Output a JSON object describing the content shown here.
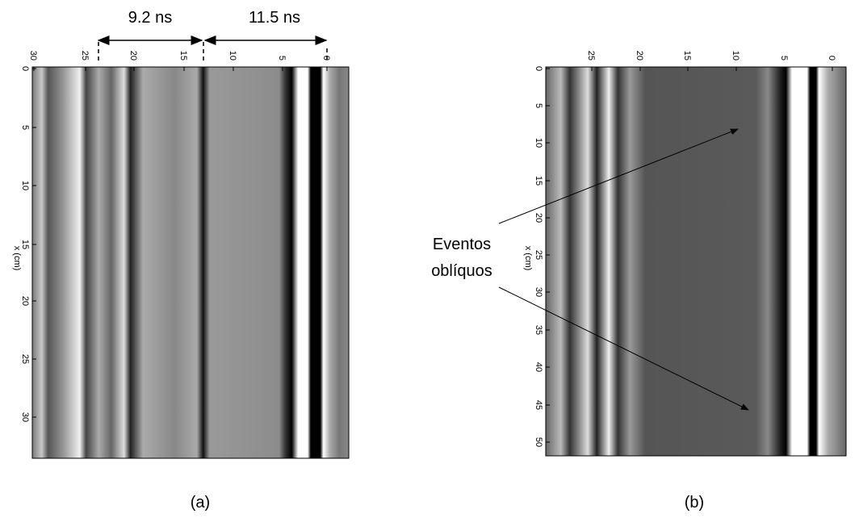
{
  "panels": [
    {
      "top_ticks": [
        30,
        25,
        20,
        15,
        10,
        5,
        0
      ],
      "left_ticks": [
        0,
        5,
        10,
        15,
        20,
        25,
        30
      ],
      "y_label": "x (cm)",
      "caption": "(a)"
    },
    {
      "top_ticks": [
        25,
        20,
        15,
        10,
        5,
        0
      ],
      "left_ticks": [
        0,
        5,
        10,
        15,
        20,
        25,
        30,
        35,
        40,
        45,
        50
      ],
      "y_label": "x (cm)",
      "caption": "(b)"
    }
  ],
  "annotations": {
    "interval_1": "9.2 ns",
    "interval_2": "11.5 ns",
    "events_line_1": "Eventos",
    "events_line_2": "oblíquos"
  }
}
